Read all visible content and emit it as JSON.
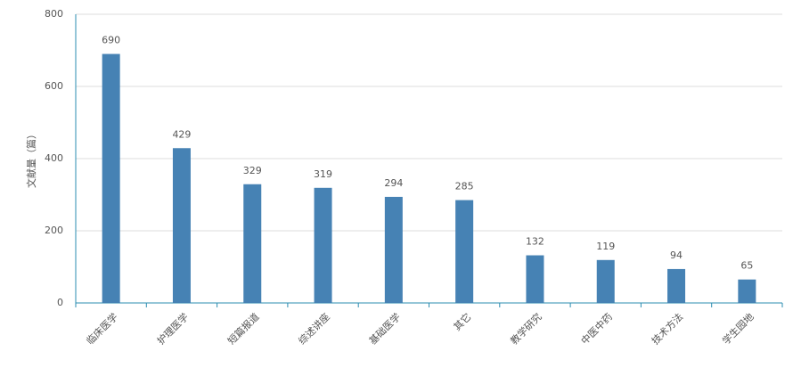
{
  "chart_data": {
    "type": "bar",
    "y_label": "文献量（篇）",
    "categories": [
      "临床医学",
      "护理医学",
      "短篇报道",
      "综述讲座",
      "基础医学",
      "其它",
      "教学研究",
      "中医中药",
      "技术方法",
      "学生园地"
    ],
    "values": [
      690,
      429,
      329,
      319,
      294,
      285,
      132,
      119,
      94,
      65
    ],
    "color": "#4682b4",
    "ylim": [
      0,
      800
    ],
    "yticks": [
      0,
      200,
      400,
      600,
      800
    ],
    "grid": true
  }
}
